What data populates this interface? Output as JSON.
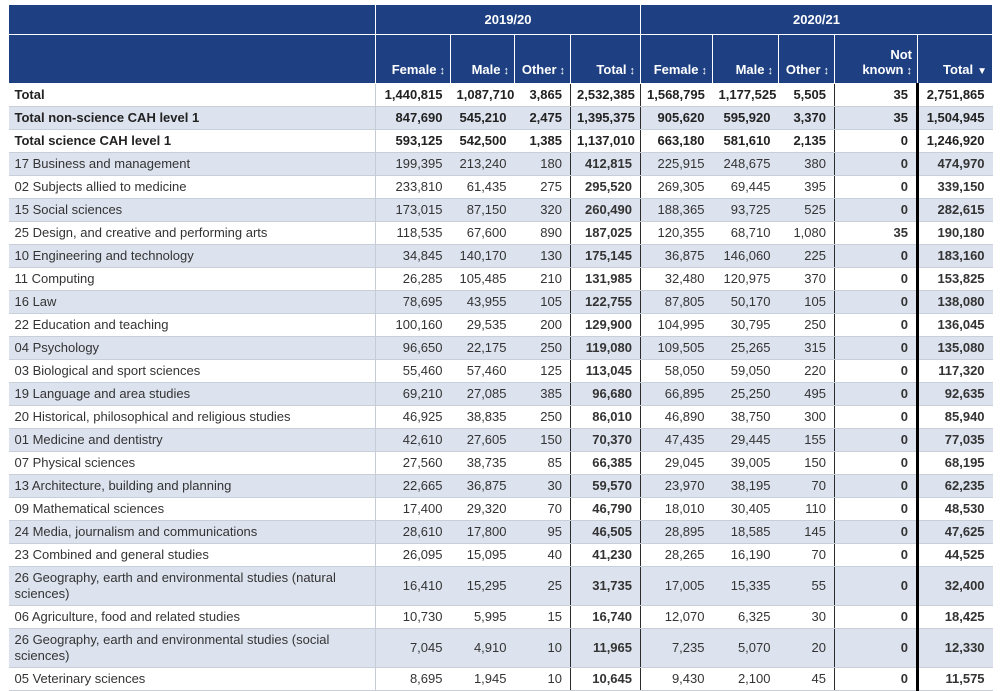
{
  "chart_data": {
    "type": "table",
    "column_groups": [
      {
        "label": "2019/20",
        "colspan": 4
      },
      {
        "label": "2020/21",
        "colspan": 5
      }
    ],
    "columns": [
      {
        "id": "female-2019-20",
        "label": "Female",
        "group": "2019/20",
        "sort": "unsorted",
        "wrap": false
      },
      {
        "id": "male-2019-20",
        "label": "Male",
        "group": "2019/20",
        "sort": "unsorted",
        "wrap": false
      },
      {
        "id": "other-2019-20",
        "label": "Other",
        "group": "2019/20",
        "sort": "unsorted",
        "wrap": false
      },
      {
        "id": "total-2019-20",
        "label": "Total",
        "group": "2019/20",
        "sort": "unsorted",
        "wrap": false
      },
      {
        "id": "female-2020-21",
        "label": "Female",
        "group": "2020/21",
        "sort": "unsorted",
        "wrap": false
      },
      {
        "id": "male-2020-21",
        "label": "Male",
        "group": "2020/21",
        "sort": "unsorted",
        "wrap": false
      },
      {
        "id": "other-2020-21",
        "label": "Other",
        "group": "2020/21",
        "sort": "unsorted",
        "wrap": true
      },
      {
        "id": "not-known-2020-21",
        "label": "Not known",
        "group": "2020/21",
        "sort": "unsorted",
        "wrap": true
      },
      {
        "id": "total-2020-21",
        "label": "Total",
        "group": "2020/21",
        "sort": "descending",
        "wrap": false
      }
    ],
    "icons": {
      "sort_unsorted": "↕",
      "sort_descending": "▼"
    },
    "rows": [
      {
        "label": "Total",
        "bold": true,
        "values": [
          "1,440,815",
          "1,087,710",
          "3,865",
          "2,532,385",
          "1,568,795",
          "1,177,525",
          "5,505",
          "35",
          "2,751,865"
        ]
      },
      {
        "label": "Total non-science CAH level 1",
        "bold": true,
        "values": [
          "847,690",
          "545,210",
          "2,475",
          "1,395,375",
          "905,620",
          "595,920",
          "3,370",
          "35",
          "1,504,945"
        ]
      },
      {
        "label": "Total science CAH level 1",
        "bold": true,
        "values": [
          "593,125",
          "542,500",
          "1,385",
          "1,137,010",
          "663,180",
          "581,610",
          "2,135",
          "0",
          "1,246,920"
        ]
      },
      {
        "label": "17 Business and management",
        "bold": false,
        "values": [
          "199,395",
          "213,240",
          "180",
          "412,815",
          "225,915",
          "248,675",
          "380",
          "0",
          "474,970"
        ]
      },
      {
        "label": "02 Subjects allied to medicine",
        "bold": false,
        "values": [
          "233,810",
          "61,435",
          "275",
          "295,520",
          "269,305",
          "69,445",
          "395",
          "0",
          "339,150"
        ]
      },
      {
        "label": "15 Social sciences",
        "bold": false,
        "values": [
          "173,015",
          "87,150",
          "320",
          "260,490",
          "188,365",
          "93,725",
          "525",
          "0",
          "282,615"
        ]
      },
      {
        "label": "25 Design, and creative and performing arts",
        "bold": false,
        "values": [
          "118,535",
          "67,600",
          "890",
          "187,025",
          "120,355",
          "68,710",
          "1,080",
          "35",
          "190,180"
        ]
      },
      {
        "label": "10 Engineering and technology",
        "bold": false,
        "values": [
          "34,845",
          "140,170",
          "130",
          "175,145",
          "36,875",
          "146,060",
          "225",
          "0",
          "183,160"
        ]
      },
      {
        "label": "11 Computing",
        "bold": false,
        "values": [
          "26,285",
          "105,485",
          "210",
          "131,985",
          "32,480",
          "120,975",
          "370",
          "0",
          "153,825"
        ]
      },
      {
        "label": "16 Law",
        "bold": false,
        "values": [
          "78,695",
          "43,955",
          "105",
          "122,755",
          "87,805",
          "50,170",
          "105",
          "0",
          "138,080"
        ]
      },
      {
        "label": "22 Education and teaching",
        "bold": false,
        "values": [
          "100,160",
          "29,535",
          "200",
          "129,900",
          "104,995",
          "30,795",
          "250",
          "0",
          "136,045"
        ]
      },
      {
        "label": "04 Psychology",
        "bold": false,
        "values": [
          "96,650",
          "22,175",
          "250",
          "119,080",
          "109,505",
          "25,265",
          "315",
          "0",
          "135,080"
        ]
      },
      {
        "label": "03 Biological and sport sciences",
        "bold": false,
        "values": [
          "55,460",
          "57,460",
          "125",
          "113,045",
          "58,050",
          "59,050",
          "220",
          "0",
          "117,320"
        ]
      },
      {
        "label": "19 Language and area studies",
        "bold": false,
        "values": [
          "69,210",
          "27,085",
          "385",
          "96,680",
          "66,895",
          "25,250",
          "495",
          "0",
          "92,635"
        ]
      },
      {
        "label": "20 Historical, philosophical and religious studies",
        "bold": false,
        "values": [
          "46,925",
          "38,835",
          "250",
          "86,010",
          "46,890",
          "38,750",
          "300",
          "0",
          "85,940"
        ]
      },
      {
        "label": "01 Medicine and dentistry",
        "bold": false,
        "values": [
          "42,610",
          "27,605",
          "150",
          "70,370",
          "47,435",
          "29,445",
          "155",
          "0",
          "77,035"
        ]
      },
      {
        "label": "07 Physical sciences",
        "bold": false,
        "values": [
          "27,560",
          "38,735",
          "85",
          "66,385",
          "29,045",
          "39,005",
          "150",
          "0",
          "68,195"
        ]
      },
      {
        "label": "13 Architecture, building and planning",
        "bold": false,
        "values": [
          "22,665",
          "36,875",
          "30",
          "59,570",
          "23,970",
          "38,195",
          "70",
          "0",
          "62,235"
        ]
      },
      {
        "label": "09 Mathematical sciences",
        "bold": false,
        "values": [
          "17,400",
          "29,320",
          "70",
          "46,790",
          "18,010",
          "30,405",
          "110",
          "0",
          "48,530"
        ]
      },
      {
        "label": "24 Media, journalism and communications",
        "bold": false,
        "values": [
          "28,610",
          "17,800",
          "95",
          "46,505",
          "28,895",
          "18,585",
          "145",
          "0",
          "47,625"
        ]
      },
      {
        "label": "23 Combined and general studies",
        "bold": false,
        "values": [
          "26,095",
          "15,095",
          "40",
          "41,230",
          "28,265",
          "16,190",
          "70",
          "0",
          "44,525"
        ]
      },
      {
        "label": "26 Geography, earth and environmental studies (natural sciences)",
        "bold": false,
        "values": [
          "16,410",
          "15,295",
          "25",
          "31,735",
          "17,005",
          "15,335",
          "55",
          "0",
          "32,400"
        ]
      },
      {
        "label": "06 Agriculture, food and related studies",
        "bold": false,
        "values": [
          "10,730",
          "5,995",
          "15",
          "16,740",
          "12,070",
          "6,325",
          "30",
          "0",
          "18,425"
        ]
      },
      {
        "label": "26 Geography, earth and environmental studies (social sciences)",
        "bold": false,
        "values": [
          "7,045",
          "4,910",
          "10",
          "11,965",
          "7,235",
          "5,070",
          "20",
          "0",
          "12,330"
        ]
      },
      {
        "label": "05 Veterinary sciences",
        "bold": false,
        "values": [
          "8,695",
          "1,945",
          "10",
          "10,645",
          "9,430",
          "2,100",
          "45",
          "0",
          "11,575"
        ]
      }
    ],
    "colors": {
      "header_bg": "#1e4082",
      "header_text": "#ffffff",
      "row_alt_bg": "#dde3ee",
      "body_text": "#333333",
      "dark_divider": "#2b2b2b",
      "thick_divider": "#000000",
      "row_border": "#c9cfd9"
    }
  }
}
